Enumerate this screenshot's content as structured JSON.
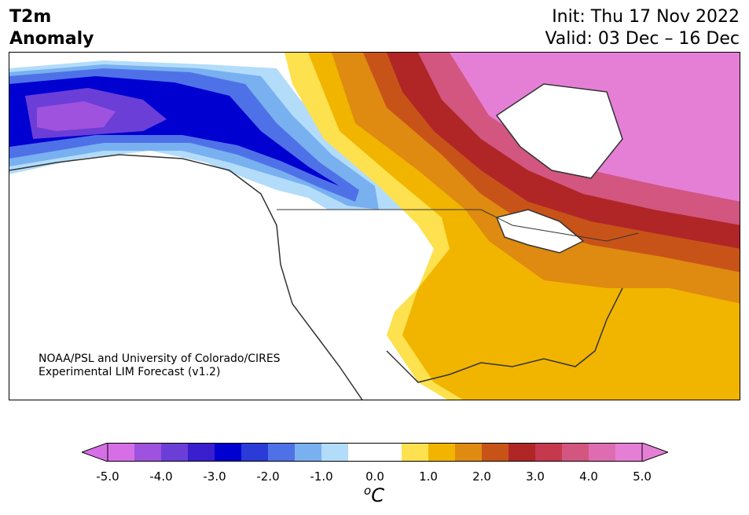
{
  "header": {
    "title_line1": "T2m",
    "title_line2": "Anomaly",
    "init": "Init: Thu 17 Nov 2022",
    "valid": "Valid: 03 Dec – 16 Dec"
  },
  "credit": {
    "line1": "NOAA/PSL and University of Colorado/CIRES",
    "line2": "Experimental LIM Forecast (v1.2)"
  },
  "colorbar": {
    "unit_base": "C",
    "unit_sup": "o",
    "ticks": [
      "-5.0",
      "-4.0",
      "-3.0",
      "-2.0",
      "-1.0",
      "0.0",
      "1.0",
      "2.0",
      "3.0",
      "4.0",
      "5.0"
    ],
    "colors": [
      "#d66fe6",
      "#9f52de",
      "#6b3ed8",
      "#3a1fce",
      "#0000d0",
      "#2a3bd8",
      "#4f71e8",
      "#79b0f0",
      "#b2dcfa",
      "#ffffff",
      "#ffffff",
      "#fde14e",
      "#f1b500",
      "#df8a10",
      "#c85318",
      "#b02626",
      "#c6384e",
      "#d25680",
      "#dd6cb0",
      "#e57fd6"
    ],
    "under_color": "#d66fe6",
    "over_color": "#e57fd6"
  },
  "map": {
    "region": "North America",
    "field": "2-m temperature anomaly"
  }
}
